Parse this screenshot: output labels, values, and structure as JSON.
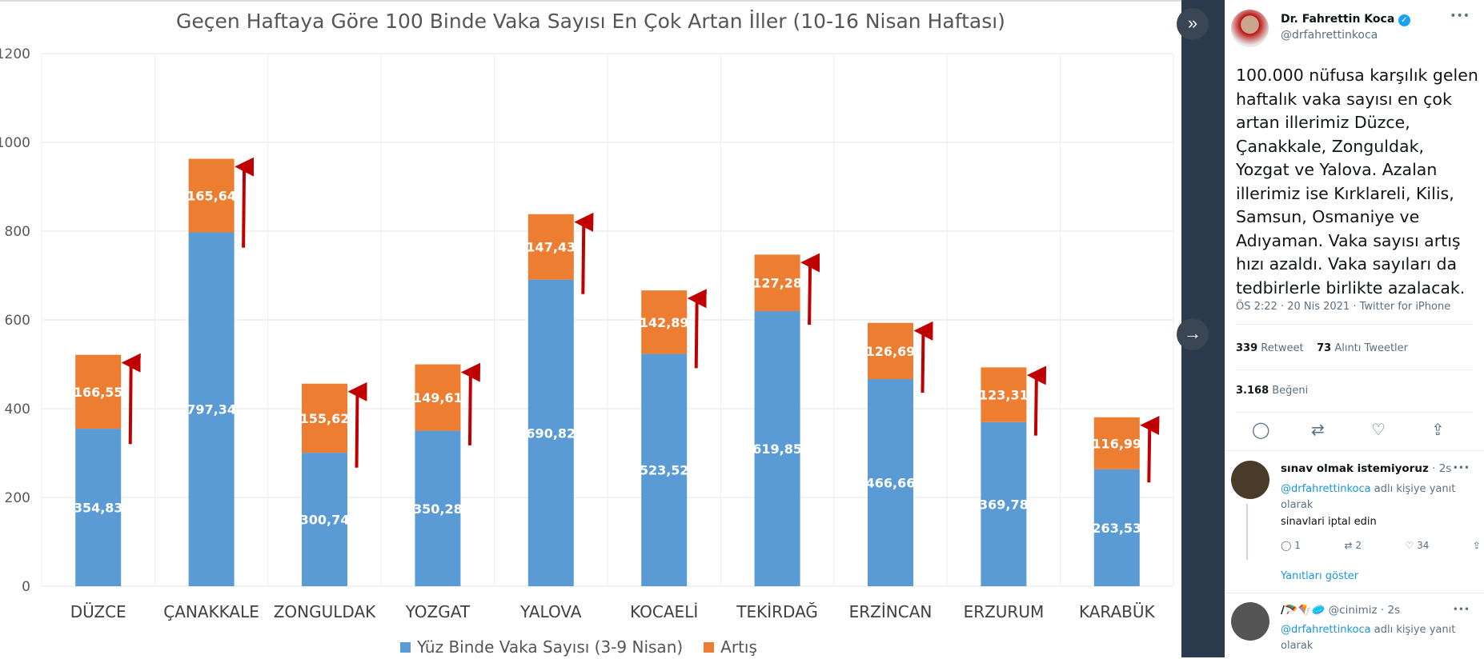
{
  "chart_data": {
    "type": "bar",
    "stacked": true,
    "title": "Geçen Haftaya Göre 100 Binde Vaka Sayısı En Çok Artan İller (10-16 Nisan Haftası)",
    "categories": [
      "DÜZCE",
      "ÇANAKKALE",
      "ZONGULDAK",
      "YOZGAT",
      "YALOVA",
      "KOCAELİ",
      "TEKİRDAĞ",
      "ERZİNCAN",
      "ERZURUM",
      "KARABÜK"
    ],
    "series": [
      {
        "name": "Yüz Binde Vaka Sayısı (3-9 Nisan)",
        "color": "#5b9bd5",
        "values": [
          354.83,
          797.34,
          300.74,
          350.28,
          690.82,
          523.52,
          619.85,
          466.66,
          369.78,
          263.53
        ],
        "labels": [
          "354,83",
          "797,34",
          "300,74",
          "350,28",
          "690,82",
          "523,52",
          "619,85",
          "466,66",
          "369,78",
          "263,53"
        ]
      },
      {
        "name": "Artış",
        "color": "#ed7d31",
        "values": [
          166.55,
          165.64,
          155.62,
          149.61,
          147.43,
          142.89,
          127.28,
          126.69,
          123.31,
          116.99
        ],
        "labels": [
          "166,55",
          "165,64",
          "155,62",
          "149,61",
          "147,43",
          "142,89",
          "127,28",
          "126,69",
          "123,31",
          "116,99"
        ]
      }
    ],
    "yticks": [
      "0",
      "200",
      "400",
      "600",
      "800",
      "1000",
      "1200"
    ],
    "ylim": [
      0,
      1200
    ],
    "grid": true,
    "legend": "bottom",
    "annotation_arrow_color": "#c00000"
  },
  "tweet": {
    "name": "Dr. Fahrettin Koca",
    "handle": "@drfahrettinkoca",
    "lines": [
      "100.000 nüfusa karşılık gelen",
      "haftalık vaka sayısı en çok",
      "artan illerimiz Düzce,",
      "Çanakkale, Zonguldak,",
      "Yozgat ve Yalova. Azalan",
      "illerimiz ise Kırklareli, Kilis,",
      "Samsun, Osmaniye ve",
      "Adıyaman. Vaka sayısı artış",
      "hızı azaldı. Vaka sayıları da",
      "tedbirlerle birlikte azalacak."
    ],
    "meta": "ÖS 2:22 · 20 Nis 2021 · Twitter for iPhone",
    "retweets": "339",
    "retweets_label": "Retweet",
    "quotes": "73",
    "quotes_label": "Alıntı Tweetler",
    "likes": "3.168",
    "likes_label": "Beğeni"
  },
  "replies": [
    {
      "name": "sınav olmak istemiyoruz",
      "time": "· 2s",
      "reply_to": "@drfahrettinkoca",
      "reply_suffix": "adlı kişiye yanıt olarak",
      "text": "sinavlari iptal edin",
      "comments": "1",
      "retweets": "2",
      "likes": "34",
      "show_replies": "Yanıtları göster"
    },
    {
      "name": "/🪂🪁🥏",
      "handle": "@cinimiz",
      "time": "· 2s",
      "reply_to": "@drfahrettinkoca",
      "reply_suffix": "adlı kişiye yanıt olarak"
    }
  ]
}
